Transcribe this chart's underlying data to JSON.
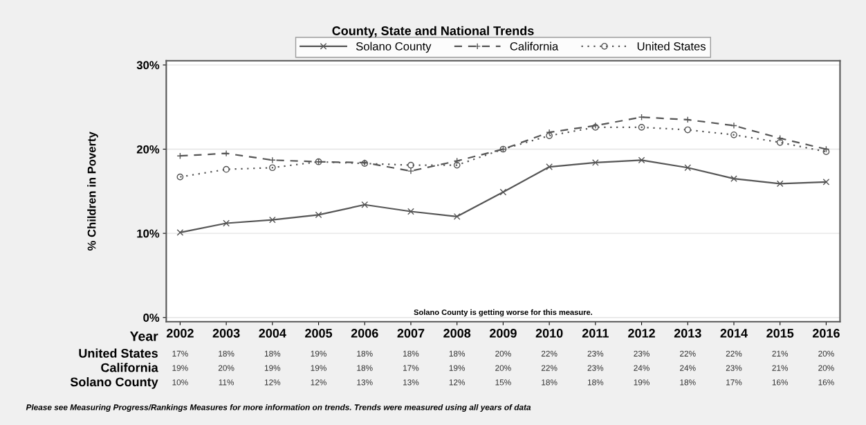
{
  "chart_data": {
    "type": "line",
    "title": "County, State and National Trends",
    "xlabel": "Year",
    "ylabel": "% Children in Poverty",
    "categories": [
      "2002",
      "2003",
      "2004",
      "2005",
      "2006",
      "2007",
      "2008",
      "2009",
      "2010",
      "2011",
      "2012",
      "2013",
      "2014",
      "2015",
      "2016"
    ],
    "series": [
      {
        "name": "Solano County",
        "color": "#555555",
        "marker": "cross",
        "line_style": "solid",
        "values": [
          10.1,
          11.2,
          11.6,
          12.2,
          13.4,
          12.6,
          12.0,
          14.9,
          17.9,
          18.4,
          18.7,
          17.8,
          16.5,
          15.9,
          16.1
        ],
        "value_labels": [
          "10%",
          "11%",
          "12%",
          "12%",
          "13%",
          "13%",
          "12%",
          "15%",
          "18%",
          "18%",
          "19%",
          "18%",
          "17%",
          "16%",
          "16%"
        ]
      },
      {
        "name": "California",
        "color": "#555555",
        "marker": "plus",
        "line_style": "dashed",
        "values": [
          19.2,
          19.5,
          18.7,
          18.5,
          18.4,
          17.4,
          18.6,
          20.0,
          22.0,
          22.8,
          23.8,
          23.5,
          22.8,
          21.3,
          20.0
        ],
        "value_labels": [
          "19%",
          "20%",
          "19%",
          "19%",
          "18%",
          "17%",
          "19%",
          "20%",
          "22%",
          "23%",
          "24%",
          "24%",
          "23%",
          "21%",
          "20%"
        ]
      },
      {
        "name": "United States",
        "color": "#555555",
        "marker": "circle",
        "line_style": "dotted",
        "values": [
          16.7,
          17.6,
          17.8,
          18.5,
          18.3,
          18.1,
          18.1,
          20.0,
          21.6,
          22.6,
          22.6,
          22.3,
          21.7,
          20.8,
          19.7
        ],
        "value_labels": [
          "17%",
          "18%",
          "18%",
          "19%",
          "18%",
          "18%",
          "18%",
          "20%",
          "22%",
          "23%",
          "23%",
          "22%",
          "22%",
          "21%",
          "20%"
        ]
      }
    ],
    "ylim": [
      -0.5,
      30.5
    ],
    "yticks": [
      {
        "value": 0,
        "label": "0%"
      },
      {
        "value": 10,
        "label": "10%"
      },
      {
        "value": 20,
        "label": "20%"
      },
      {
        "value": 30,
        "label": "30%"
      }
    ],
    "grid": "y",
    "legend": "top",
    "annotations": [
      "Solano County is getting worse for this measure.",
      "Please see Measuring Progress/Rankings Measures for more information on trends. Trends were measured using all years of data"
    ]
  }
}
